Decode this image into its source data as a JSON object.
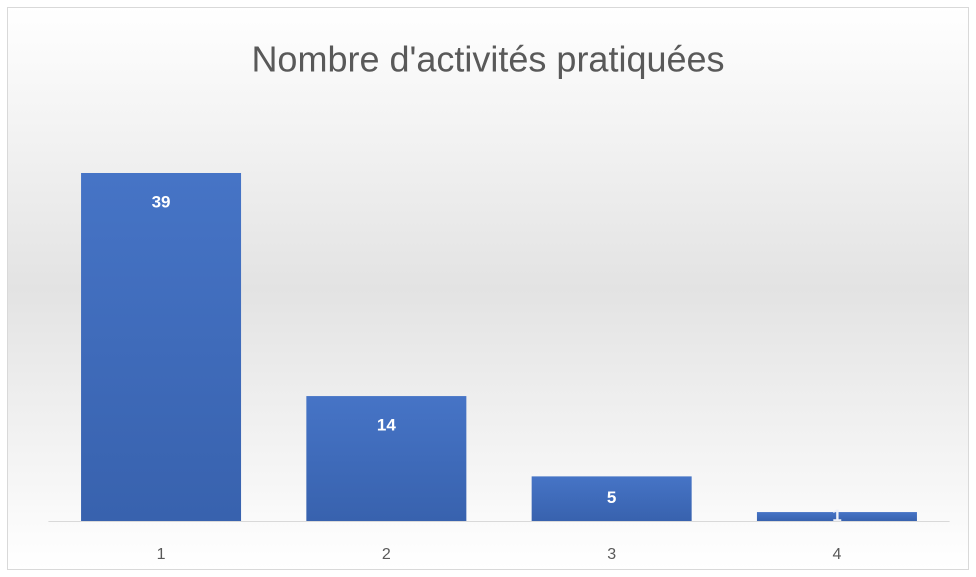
{
  "chart_data": {
    "type": "bar",
    "title": "Nombre d'activités pratiquées",
    "categories": [
      "1",
      "2",
      "3",
      "4"
    ],
    "values": [
      39,
      14,
      5,
      1
    ],
    "color": "#4472c4"
  }
}
